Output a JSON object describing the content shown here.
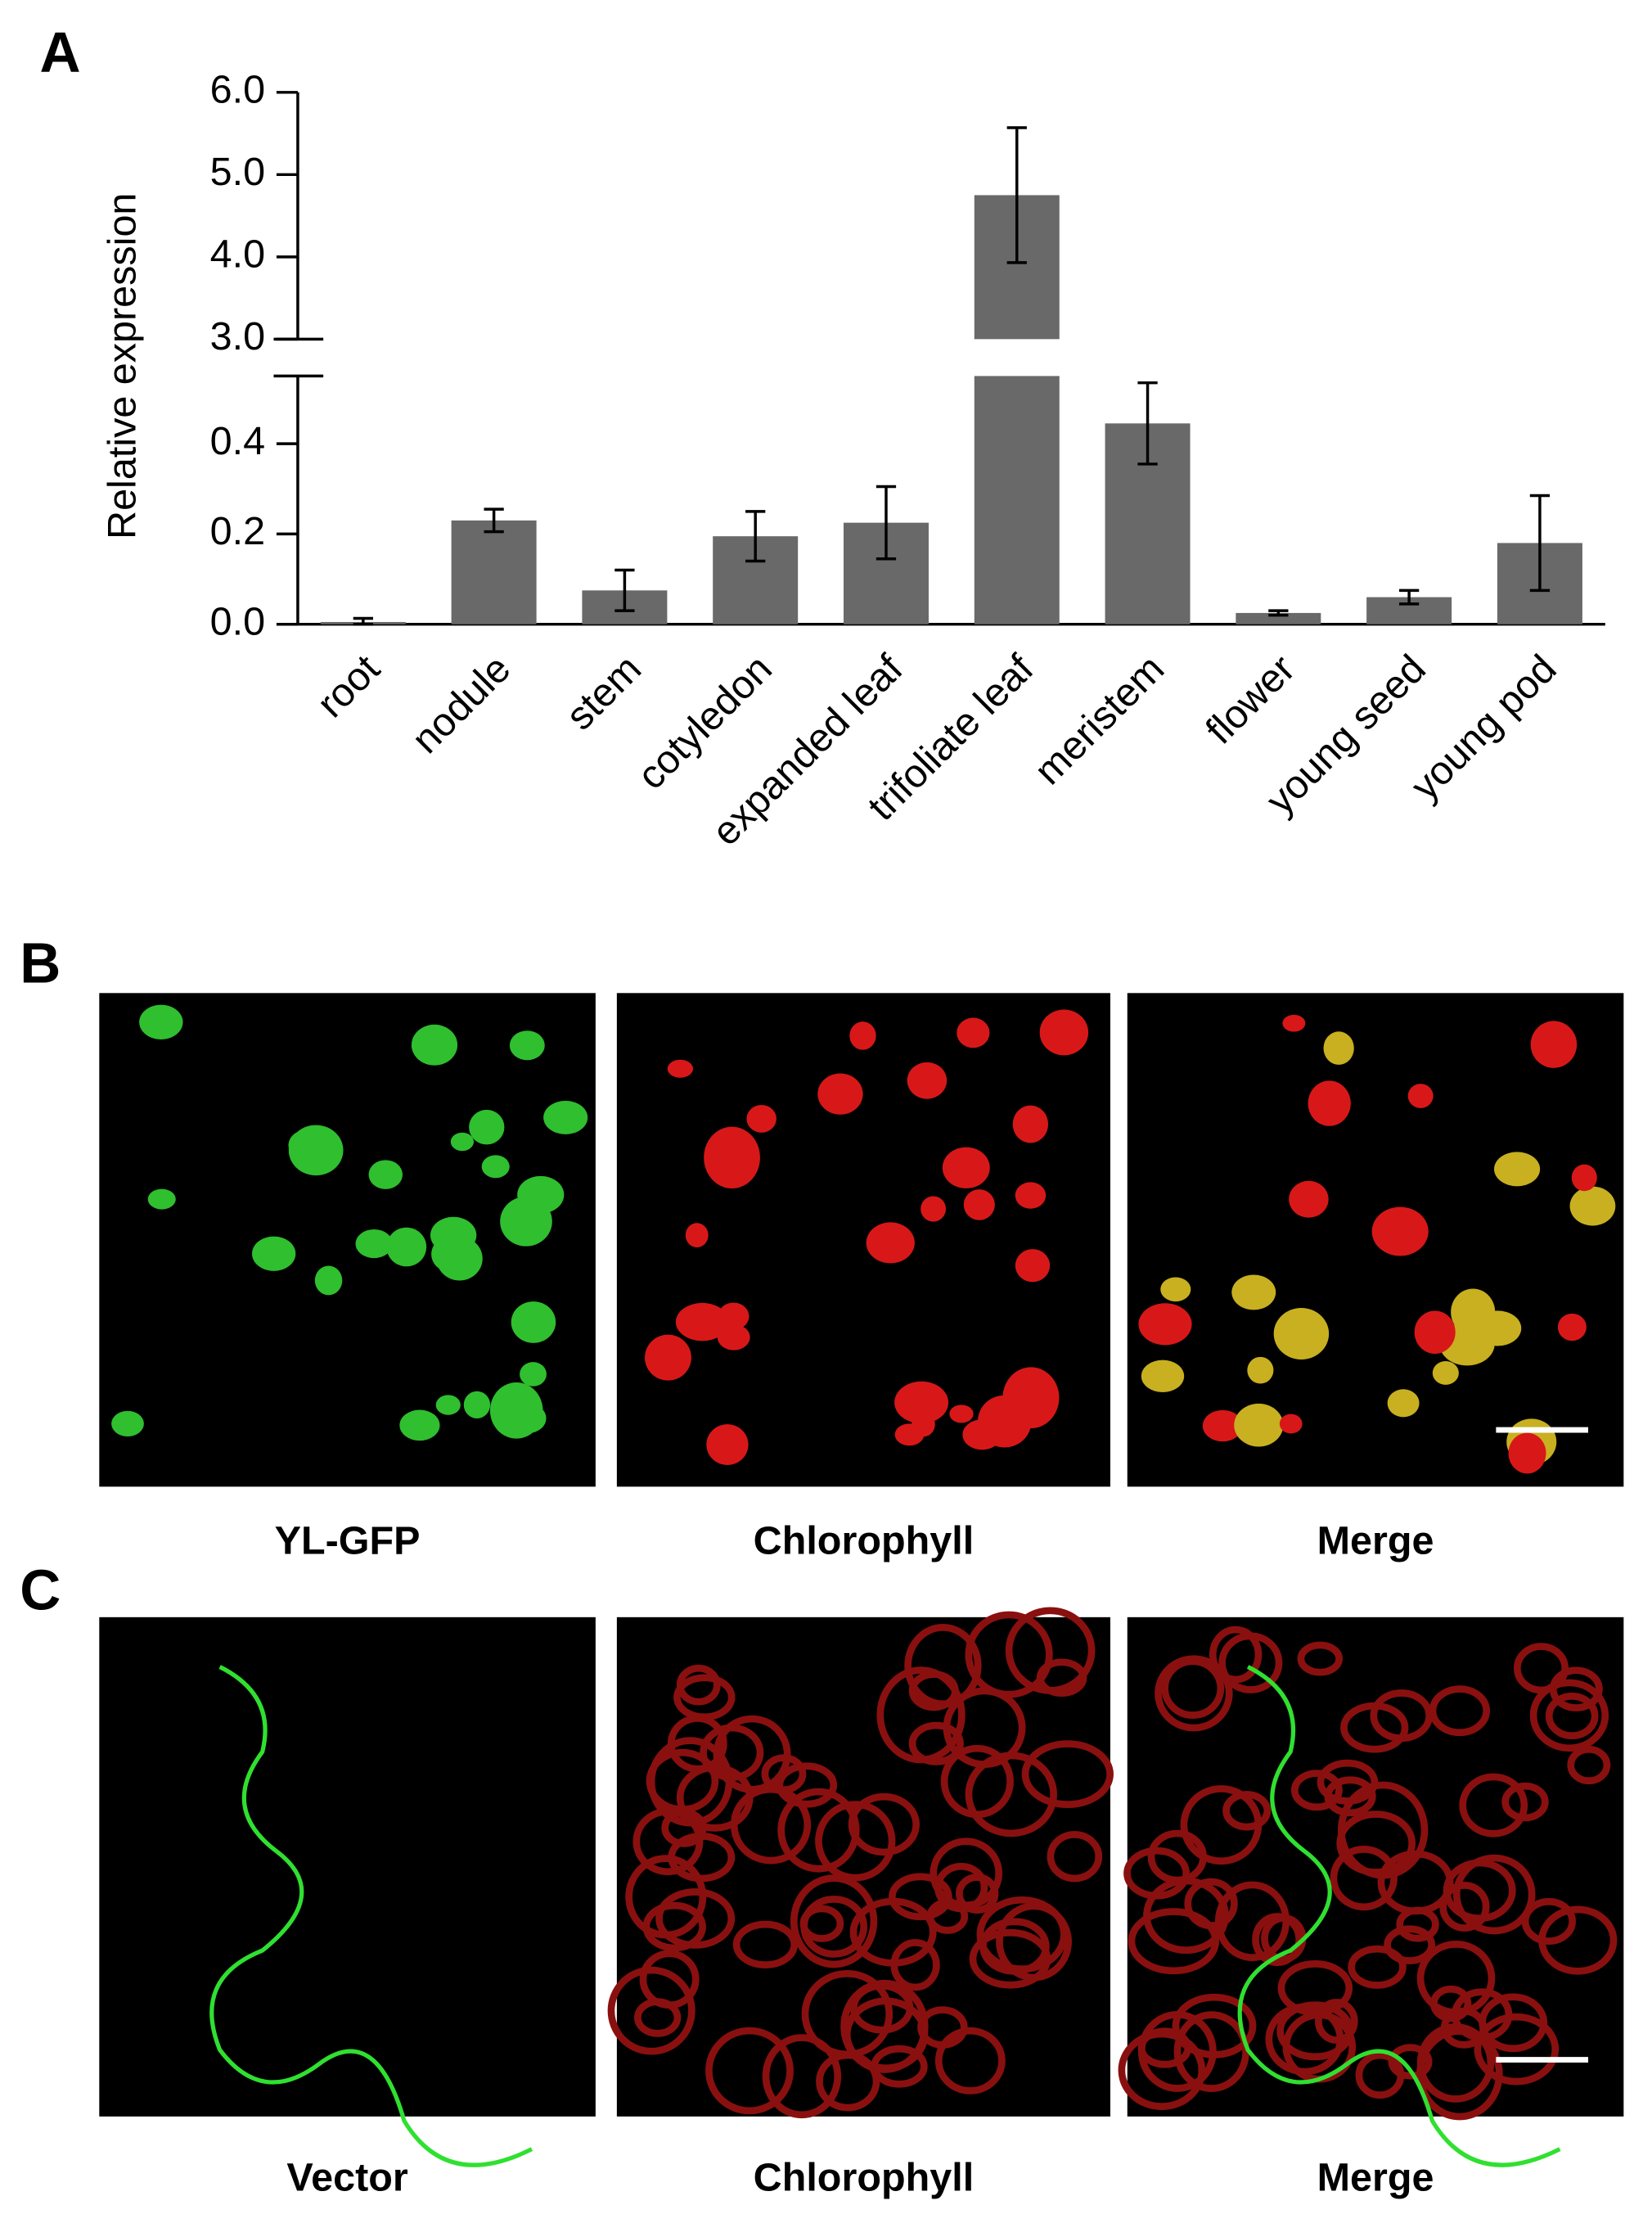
{
  "chart_data": {
    "type": "bar",
    "panel_label": "A",
    "ylabel": "Relative expression",
    "categories": [
      "root",
      "nodule",
      "stem",
      "cotyledon",
      "expanded leaf",
      "trifoliate leaf",
      "meristem",
      "flower",
      "young seed",
      "young pod"
    ],
    "values": [
      0.005,
      0.23,
      0.075,
      0.195,
      0.225,
      4.75,
      0.445,
      0.025,
      0.06,
      0.18
    ],
    "errors": [
      0.008,
      0.025,
      0.045,
      0.055,
      0.08,
      0.82,
      0.09,
      0.005,
      0.015,
      0.105
    ],
    "color": "#696969",
    "ylim": [
      0,
      6.0
    ],
    "ybreak": [
      0.55,
      3.0
    ],
    "yticks": [
      {
        "value": 0,
        "label": "0.0"
      },
      0.2,
      0.4,
      {
        "value": 3,
        "label": "3.0"
      },
      {
        "value": 4,
        "label": "4.0"
      },
      {
        "value": 5,
        "label": "5.0"
      },
      {
        "value": 6,
        "label": "6.0"
      }
    ]
  },
  "panels": [
    {
      "label": "B",
      "captions": [
        "YL-GFP",
        "Chlorophyll",
        "Merge"
      ]
    },
    {
      "label": "C",
      "captions": [
        "Vector",
        "Chlorophyll",
        "Merge"
      ]
    }
  ]
}
